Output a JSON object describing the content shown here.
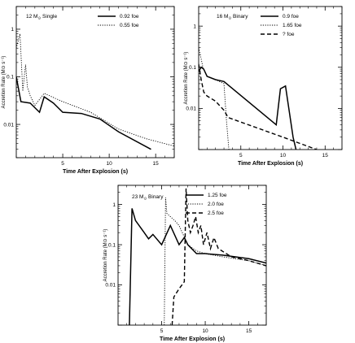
{
  "chart_data": [
    {
      "type": "line",
      "panel_label": {
        "prefix": "12 M",
        "sub": "⊙",
        "suffix": " Single"
      },
      "xlabel": "Time After Explosion (s)",
      "ylabel": "Accretion Rate (M⊙ s⁻¹)",
      "ylog": true,
      "xlim": [
        0,
        17
      ],
      "ylim": [
        0.002,
        3
      ],
      "x_ticks": [
        5,
        10,
        15
      ],
      "y_ticks": [
        0.01,
        0.1,
        1
      ],
      "y_tick_labels": [
        "0.01",
        "0.1",
        "1"
      ],
      "series": [
        {
          "name": "0.92 foe",
          "style": "solid",
          "x": [
            0,
            0.5,
            1.5,
            2.5,
            3,
            4,
            5,
            7,
            9,
            11,
            14.5
          ],
          "y": [
            0.1,
            0.03,
            0.028,
            0.018,
            0.038,
            0.028,
            0.018,
            0.017,
            0.013,
            0.007,
            0.003
          ]
        },
        {
          "name": "0.55 foe",
          "style": "dotted",
          "x": [
            0,
            0.4,
            0.7,
            1.0,
            1.2,
            1.5,
            2,
            3,
            5,
            8,
            11,
            14,
            17
          ],
          "y": [
            0.4,
            0.8,
            0.05,
            0.18,
            0.06,
            0.04,
            0.025,
            0.045,
            0.03,
            0.018,
            0.008,
            0.005,
            0.0035
          ]
        }
      ]
    },
    {
      "type": "line",
      "panel_label": {
        "prefix": "16 M",
        "sub": "⊙",
        "suffix": " Binary"
      },
      "xlabel": "Time After Explosion (s)",
      "ylabel": "Accretion Rate (M⊙ s⁻¹)",
      "ylog": true,
      "xlim": [
        0,
        17
      ],
      "ylim": [
        0.001,
        3
      ],
      "x_ticks": [
        5,
        10,
        15
      ],
      "y_ticks": [
        0.01,
        0.1,
        1
      ],
      "y_tick_labels": [
        "0.01",
        "0.1",
        "1"
      ],
      "series": [
        {
          "name": "0.9 foe",
          "style": "solid",
          "x": [
            0,
            0.3,
            0.6,
            1,
            2,
            3,
            9.2,
            9.7,
            10.3,
            11.2,
            11.6
          ],
          "y": [
            0.08,
            0.1,
            0.09,
            0.06,
            0.05,
            0.045,
            0.004,
            0.03,
            0.035,
            0.002,
            0.0009
          ]
        },
        {
          "name": "1.65 foe",
          "style": "dotted",
          "x": [
            0,
            0.2,
            0.5,
            1,
            2,
            3,
            3.3,
            3.6
          ],
          "y": [
            0.3,
            0.2,
            0.1,
            0.06,
            0.05,
            0.04,
            0.005,
            0.0009
          ]
        },
        {
          "name": "? foe",
          "style": "dashed",
          "x": [
            0,
            0.3,
            0.6,
            1,
            2,
            3,
            3.5,
            10,
            14
          ],
          "y": [
            0.12,
            0.05,
            0.025,
            0.02,
            0.015,
            0.009,
            0.006,
            0.002,
            0.001
          ]
        }
      ]
    },
    {
      "type": "line",
      "panel_label": {
        "prefix": "23 M",
        "sub": "⊙",
        "suffix": " Binary"
      },
      "xlabel": "Time After Explosion (s)",
      "ylabel": "Accretion Rate (M⊙ s⁻¹)",
      "ylog": true,
      "xlim": [
        0,
        17
      ],
      "ylim": [
        0.001,
        3
      ],
      "x_ticks": [
        5,
        10,
        15
      ],
      "y_ticks": [
        0.01,
        0.1,
        1
      ],
      "y_tick_labels": [
        "0.01",
        "0.1",
        "1"
      ],
      "series": [
        {
          "name": "1.25 foe",
          "style": "solid",
          "x": [
            1.3,
            1.6,
            2,
            3,
            3.5,
            4,
            5,
            6,
            7,
            7.6,
            8,
            9,
            10,
            12,
            15,
            17
          ],
          "y": [
            0.001,
            0.8,
            0.4,
            0.2,
            0.14,
            0.18,
            0.1,
            0.3,
            0.1,
            0.15,
            0.1,
            0.06,
            0.06,
            0.055,
            0.045,
            0.035
          ]
        },
        {
          "name": "2.0 foe",
          "style": "dotted",
          "x": [
            5.3,
            5.45,
            5.6,
            6,
            6.5,
            7,
            8,
            9,
            10,
            12,
            15,
            17
          ],
          "y": [
            0.001,
            1.5,
            0.6,
            0.5,
            0.4,
            0.3,
            0.1,
            0.07,
            0.06,
            0.05,
            0.04,
            0.03
          ]
        },
        {
          "name": "2.5 foe",
          "style": "dashed",
          "x": [
            6.2,
            6.4,
            7,
            7.6,
            7.8,
            8.0,
            8.3,
            8.6,
            8.9,
            9.2,
            9.5,
            9.8,
            10.2,
            10.6,
            11,
            11.5,
            13,
            15,
            17
          ],
          "y": [
            0.001,
            0.005,
            0.008,
            0.012,
            2.5,
            0.4,
            0.2,
            0.3,
            0.5,
            0.2,
            0.3,
            0.1,
            0.2,
            0.08,
            0.15,
            0.08,
            0.05,
            0.04,
            0.03
          ]
        }
      ]
    }
  ]
}
